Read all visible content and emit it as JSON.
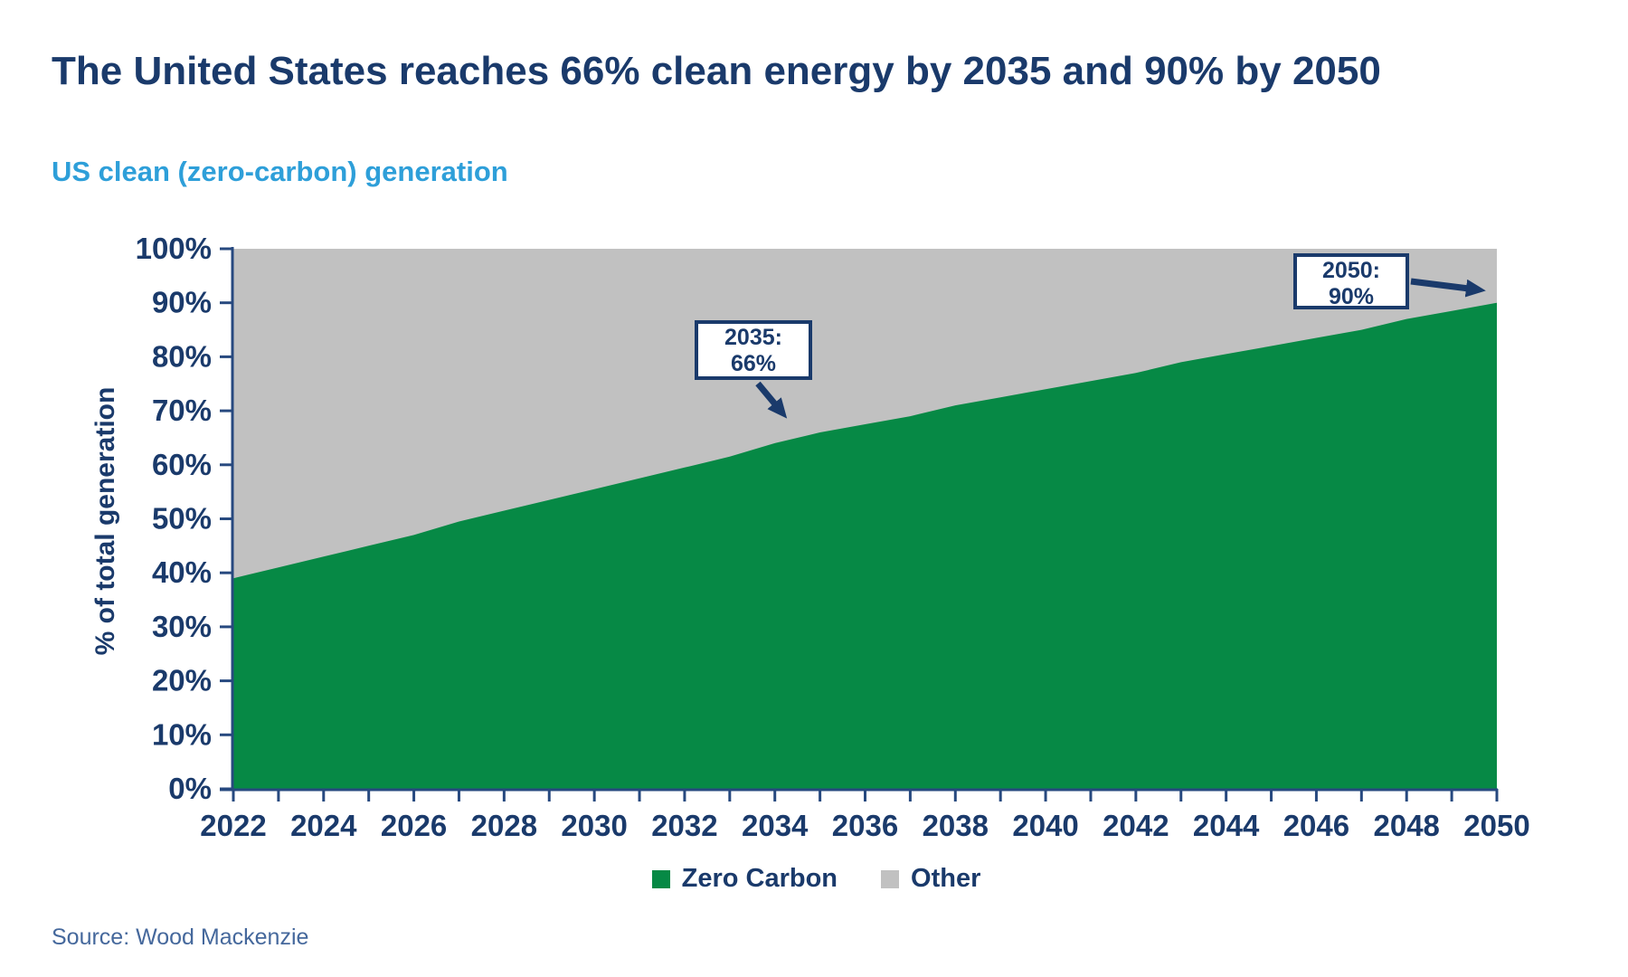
{
  "page": {
    "title": "The United States reaches 66% clean energy by 2035 and 90% by 2050",
    "subtitle": "US clean (zero-carbon) generation",
    "source": "Source: Wood Mackenzie"
  },
  "colors": {
    "navy": "#1a3a6b",
    "axis": "#27497f",
    "subtitle_blue": "#2e9fd9",
    "green": "#068945",
    "gray": "#c1c1c1",
    "source_blue": "#45689c"
  },
  "legend": {
    "items": [
      {
        "label": "Zero Carbon",
        "color": "#068945"
      },
      {
        "label": "Other",
        "color": "#c1c1c1"
      }
    ]
  },
  "chart_data": {
    "type": "area",
    "stacked": true,
    "normalized_to_100": true,
    "title": "US clean (zero-carbon) generation",
    "xlabel": "",
    "ylabel": "% of total generation",
    "ylim": [
      0,
      100
    ],
    "grid": false,
    "legend_position": "bottom",
    "x": [
      2022,
      2023,
      2024,
      2025,
      2026,
      2027,
      2028,
      2029,
      2030,
      2031,
      2032,
      2033,
      2034,
      2035,
      2036,
      2037,
      2038,
      2039,
      2040,
      2041,
      2042,
      2043,
      2044,
      2045,
      2046,
      2047,
      2048,
      2049,
      2050
    ],
    "x_tick_labels": [
      "2022",
      "2024",
      "2026",
      "2028",
      "2030",
      "2032",
      "2034",
      "2036",
      "2038",
      "2040",
      "2042",
      "2044",
      "2046",
      "2048",
      "2050"
    ],
    "y_ticks": [
      "0%",
      "10%",
      "20%",
      "30%",
      "40%",
      "50%",
      "60%",
      "70%",
      "80%",
      "90%",
      "100%"
    ],
    "series": [
      {
        "name": "Zero Carbon",
        "color": "#068945",
        "values": [
          39,
          41,
          43,
          45,
          47,
          49.5,
          51.5,
          53.5,
          55.5,
          57.5,
          59.5,
          61.5,
          64,
          66,
          67.5,
          69,
          71,
          72.5,
          74,
          75.5,
          77,
          79,
          80.5,
          82,
          83.5,
          85,
          87,
          88.5,
          90
        ]
      },
      {
        "name": "Other",
        "color": "#c1c1c1",
        "values": [
          61,
          59,
          57,
          55,
          53,
          50.5,
          48.5,
          46.5,
          44.5,
          42.5,
          40.5,
          38.5,
          36,
          34,
          32.5,
          31,
          29,
          27.5,
          26,
          24.5,
          23,
          21,
          19.5,
          18,
          16.5,
          15,
          13,
          11.5,
          10
        ]
      }
    ],
    "annotations": [
      {
        "text_lines": [
          "2035:",
          "66%"
        ],
        "anchor_year": 2035,
        "anchor_pct": 66
      },
      {
        "text_lines": [
          "2050:",
          "90%"
        ],
        "anchor_year": 2050,
        "anchor_pct": 90
      }
    ]
  }
}
